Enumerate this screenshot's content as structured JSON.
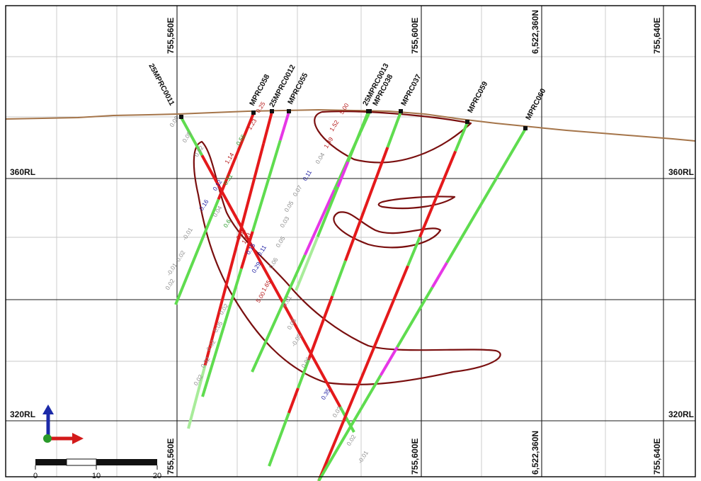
{
  "section": {
    "easting_labels": [
      "755,560E",
      "755,600E",
      "6,522,360N",
      "755,640E"
    ],
    "rl_labels": [
      {
        "text": "360RL",
        "side": "left"
      },
      {
        "text": "360RL",
        "side": "right"
      },
      {
        "text": "320RL",
        "side": "left"
      },
      {
        "text": "320RL",
        "side": "right"
      }
    ],
    "scale_bar": {
      "labels": [
        "0",
        "10",
        "20"
      ]
    },
    "colors": {
      "grade_green": "#5fdc4f",
      "grade_light_green": "#a8ec9a",
      "grade_red": "#e4191b",
      "grade_magenta": "#e637e6",
      "lode": "#7a0f0f",
      "topography": "#a5754a",
      "axis_up": "#1c2aa8",
      "axis_east": "#d31a1a",
      "axis_origin": "#2a9a2a"
    },
    "drillholes": [
      {
        "name": "25MPRC0011"
      },
      {
        "name": "MPRC058"
      },
      {
        "name": "25MPRC0012"
      },
      {
        "name": "MPRC055"
      },
      {
        "name": "25MPRC0013"
      },
      {
        "name": "MPRC038"
      },
      {
        "name": "MPRC037"
      },
      {
        "name": "MPRC059"
      },
      {
        "name": "MPRC060"
      }
    ],
    "assays": [
      {
        "value": "0.08",
        "color": "#8c8c8c"
      },
      {
        "value": "0.05",
        "color": "#8c8c8c"
      },
      {
        "value": "0.02",
        "color": "#8c8c8c"
      },
      {
        "value": "0.12",
        "color": "#1a1aa0"
      },
      {
        "value": "0.16",
        "color": "#1a1aa0"
      },
      {
        "value": "0.04",
        "color": "#8c8c8c"
      },
      {
        "value": "-0.01",
        "color": "#8c8c8c"
      },
      {
        "value": "0.02",
        "color": "#8c8c8c"
      },
      {
        "value": "-0.01",
        "color": "#8c8c8c"
      },
      {
        "value": "0.02",
        "color": "#8c8c8c"
      },
      {
        "value": "0.25",
        "color": "#b51a1a"
      },
      {
        "value": "1.23",
        "color": "#b51a1a"
      },
      {
        "value": "0.56",
        "color": "#2a9a2a"
      },
      {
        "value": "1.14",
        "color": "#b51a1a"
      },
      {
        "value": "0.51",
        "color": "#2a9a2a"
      },
      {
        "value": "0.6",
        "color": "#2a9a2a"
      },
      {
        "value": "0.81",
        "color": "#b51a1a"
      },
      {
        "value": "1.93",
        "color": "#b51a1a"
      },
      {
        "value": "0.15",
        "color": "#1a1aa0"
      },
      {
        "value": "0.11",
        "color": "#1a1aa0"
      },
      {
        "value": "0.29",
        "color": "#1a1aa0"
      },
      {
        "value": "1.65",
        "color": "#b51a1a"
      },
      {
        "value": "5.00",
        "color": "#b51a1a"
      },
      {
        "value": "0.02",
        "color": "#8c8c8c"
      },
      {
        "value": "0.05",
        "color": "#8c8c8c"
      },
      {
        "value": "0.02",
        "color": "#8c8c8c"
      },
      {
        "value": "0.02",
        "color": "#8c8c8c"
      },
      {
        "value": "0.02",
        "color": "#8c8c8c"
      },
      {
        "value": "5.00",
        "color": "#b51a1a"
      },
      {
        "value": "1.52",
        "color": "#b51a1a"
      },
      {
        "value": "1.49",
        "color": "#b51a1a"
      },
      {
        "value": "0.04",
        "color": "#8c8c8c"
      },
      {
        "value": "0.11",
        "color": "#1a1aa0"
      },
      {
        "value": "0.07",
        "color": "#8c8c8c"
      },
      {
        "value": "0.05",
        "color": "#8c8c8c"
      },
      {
        "value": "0.03",
        "color": "#8c8c8c"
      },
      {
        "value": "0.05",
        "color": "#8c8c8c"
      },
      {
        "value": "0.06",
        "color": "#8c8c8c"
      },
      {
        "value": "-0.01",
        "color": "#8c8c8c"
      },
      {
        "value": "0.05",
        "color": "#8c8c8c"
      },
      {
        "value": "-0.05",
        "color": "#8c8c8c"
      },
      {
        "value": "0.06",
        "color": "#8c8c8c"
      },
      {
        "value": "0.35",
        "color": "#1a1aa0"
      },
      {
        "value": "0.03",
        "color": "#8c8c8c"
      },
      {
        "value": "0.02",
        "color": "#8c8c8c"
      },
      {
        "value": "-0.01",
        "color": "#8c8c8c"
      }
    ]
  }
}
